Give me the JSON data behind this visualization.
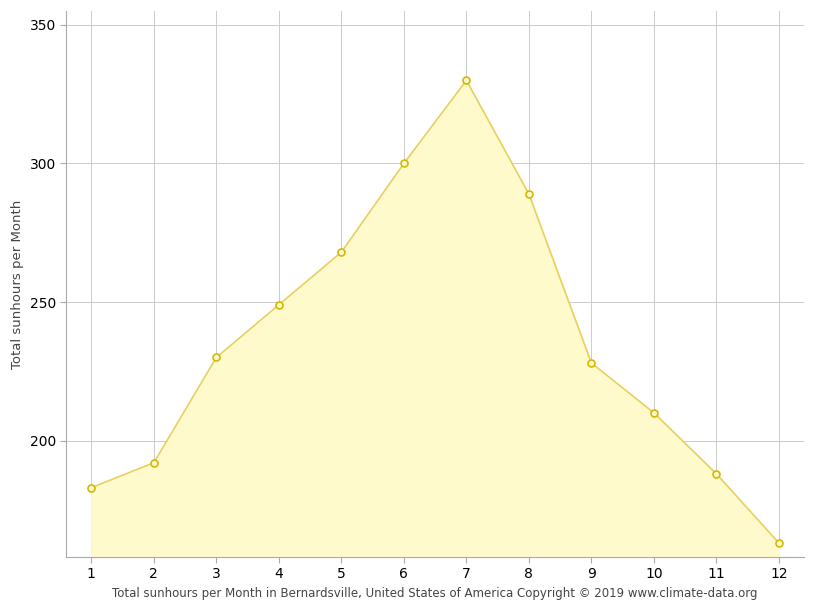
{
  "months": [
    1,
    2,
    3,
    4,
    5,
    6,
    7,
    8,
    9,
    10,
    11,
    12
  ],
  "sunhours": [
    183,
    192,
    230,
    249,
    268,
    300,
    330,
    289,
    228,
    210,
    188,
    163
  ],
  "fill_color": "#fffacc",
  "line_color": "#e8d060",
  "marker_facecolor": "#fffacc",
  "marker_edgecolor": "#d4b800",
  "xlabel": "Total sunhours per Month in Bernardsville, United States of America Copyright © 2019 www.climate-data.org",
  "ylabel": "Total sunhours per Month",
  "ylim_bottom": 158,
  "ylim_top": 355,
  "xlim_left": 0.6,
  "xlim_right": 12.4,
  "yticks": [
    200,
    250,
    300,
    350
  ],
  "xticks": [
    1,
    2,
    3,
    4,
    5,
    6,
    7,
    8,
    9,
    10,
    11,
    12
  ],
  "grid_color": "#cccccc",
  "background_color": "#ffffff",
  "xlabel_fontsize": 8.5,
  "ylabel_fontsize": 9.5,
  "tick_fontsize": 10,
  "spine_color": "#aaaaaa"
}
